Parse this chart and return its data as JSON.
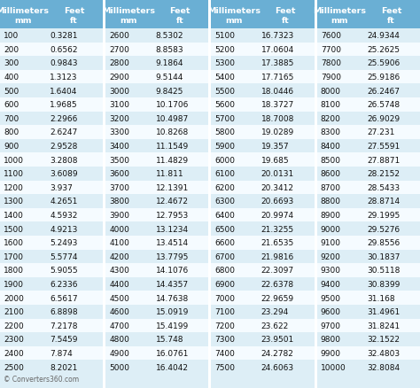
{
  "header_bg": "#6aafd4",
  "header_text_color": "#ffffff",
  "row_bg_odd": "#ddeef6",
  "row_bg_even": "#f5fbff",
  "sep_color": "#ffffff",
  "footer_text": "© Converters360.com",
  "footer_color": "#666666",
  "col_headers": [
    [
      "Millimeters",
      "mm"
    ],
    [
      "Feet",
      "ft"
    ],
    [
      "Millimeters",
      "mm"
    ],
    [
      "Feet",
      "ft"
    ],
    [
      "Millimeters",
      "mm"
    ],
    [
      "Feet",
      "ft"
    ],
    [
      "Millimeters",
      "mm"
    ],
    [
      "Feet",
      "ft"
    ]
  ],
  "data": [
    [
      100,
      "0.3281",
      2600,
      "8.5302",
      5100,
      "16.7323",
      7600,
      "24.9344"
    ],
    [
      200,
      "0.6562",
      2700,
      "8.8583",
      5200,
      "17.0604",
      7700,
      "25.2625"
    ],
    [
      300,
      "0.9843",
      2800,
      "9.1864",
      5300,
      "17.3885",
      7800,
      "25.5906"
    ],
    [
      400,
      "1.3123",
      2900,
      "9.5144",
      5400,
      "17.7165",
      7900,
      "25.9186"
    ],
    [
      500,
      "1.6404",
      3000,
      "9.8425",
      5500,
      "18.0446",
      8000,
      "26.2467"
    ],
    [
      600,
      "1.9685",
      3100,
      "10.1706",
      5600,
      "18.3727",
      8100,
      "26.5748"
    ],
    [
      700,
      "2.2966",
      3200,
      "10.4987",
      5700,
      "18.7008",
      8200,
      "26.9029"
    ],
    [
      800,
      "2.6247",
      3300,
      "10.8268",
      5800,
      "19.0289",
      8300,
      "27.231"
    ],
    [
      900,
      "2.9528",
      3400,
      "11.1549",
      5900,
      "19.357",
      8400,
      "27.5591"
    ],
    [
      1000,
      "3.2808",
      3500,
      "11.4829",
      6000,
      "19.685",
      8500,
      "27.8871"
    ],
    [
      1100,
      "3.6089",
      3600,
      "11.811",
      6100,
      "20.0131",
      8600,
      "28.2152"
    ],
    [
      1200,
      "3.937",
      3700,
      "12.1391",
      6200,
      "20.3412",
      8700,
      "28.5433"
    ],
    [
      1300,
      "4.2651",
      3800,
      "12.4672",
      6300,
      "20.6693",
      8800,
      "28.8714"
    ],
    [
      1400,
      "4.5932",
      3900,
      "12.7953",
      6400,
      "20.9974",
      8900,
      "29.1995"
    ],
    [
      1500,
      "4.9213",
      4000,
      "13.1234",
      6500,
      "21.3255",
      9000,
      "29.5276"
    ],
    [
      1600,
      "5.2493",
      4100,
      "13.4514",
      6600,
      "21.6535",
      9100,
      "29.8556"
    ],
    [
      1700,
      "5.5774",
      4200,
      "13.7795",
      6700,
      "21.9816",
      9200,
      "30.1837"
    ],
    [
      1800,
      "5.9055",
      4300,
      "14.1076",
      6800,
      "22.3097",
      9300,
      "30.5118"
    ],
    [
      1900,
      "6.2336",
      4400,
      "14.4357",
      6900,
      "22.6378",
      9400,
      "30.8399"
    ],
    [
      2000,
      "6.5617",
      4500,
      "14.7638",
      7000,
      "22.9659",
      9500,
      "31.168"
    ],
    [
      2100,
      "6.8898",
      4600,
      "15.0919",
      7100,
      "23.294",
      9600,
      "31.4961"
    ],
    [
      2200,
      "7.2178",
      4700,
      "15.4199",
      7200,
      "23.622",
      9700,
      "31.8241"
    ],
    [
      2300,
      "7.5459",
      4800,
      "15.748",
      7300,
      "23.9501",
      9800,
      "32.1522"
    ],
    [
      2400,
      "7.874",
      4900,
      "16.0761",
      7400,
      "24.2782",
      9900,
      "32.4803"
    ],
    [
      2500,
      "8.2021",
      5000,
      "16.4042",
      7500,
      "24.6063",
      10000,
      "32.8084"
    ]
  ],
  "header_fontsize": 6.8,
  "data_fontsize": 6.5,
  "footer_fontsize": 5.5,
  "fig_width": 4.74,
  "fig_height": 4.39,
  "dpi": 100
}
